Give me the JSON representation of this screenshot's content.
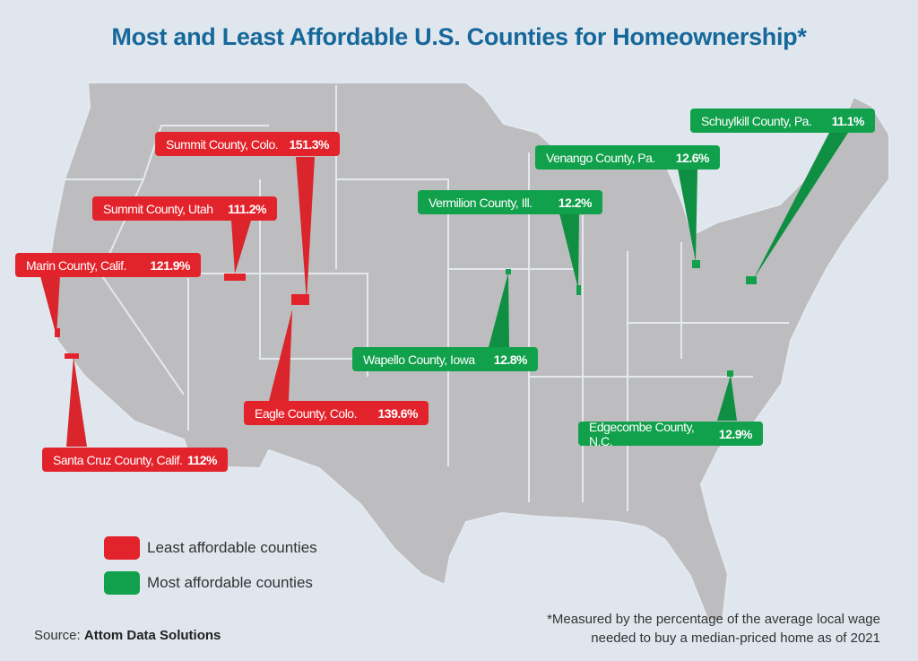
{
  "title": "Most and Least Affordable U.S. Counties for Homeownership*",
  "colors": {
    "least": "#e3232b",
    "most": "#11a04b",
    "map": "#bdbdbf",
    "title": "#17689a"
  },
  "least_affordable": [
    {
      "name": "Summit County, Colo.",
      "value": "151.3%"
    },
    {
      "name": "Summit County, Utah",
      "value": "111.2%"
    },
    {
      "name": "Marin County, Calif.",
      "value": "121.9%"
    },
    {
      "name": "Eagle County, Colo.",
      "value": "139.6%"
    },
    {
      "name": "Santa Cruz County, Calif.",
      "value": "112%"
    }
  ],
  "most_affordable": [
    {
      "name": "Schuylkill County, Pa.",
      "value": "11.1%"
    },
    {
      "name": "Venango County, Pa.",
      "value": "12.6%"
    },
    {
      "name": "Vermilion County, Ill.",
      "value": "12.2%"
    },
    {
      "name": "Wapello County, Iowa",
      "value": "12.8%"
    },
    {
      "name": "Edgecombe County, N.C.",
      "value": "12.9%"
    }
  ],
  "legend": {
    "least": "Least affordable counties",
    "most": "Most affordable counties"
  },
  "source": {
    "label": "Source:",
    "name": "Attom Data Solutions"
  },
  "footnote": [
    "*Measured by the percentage of the average local wage",
    "needed to buy a median-priced home as of 2021"
  ]
}
